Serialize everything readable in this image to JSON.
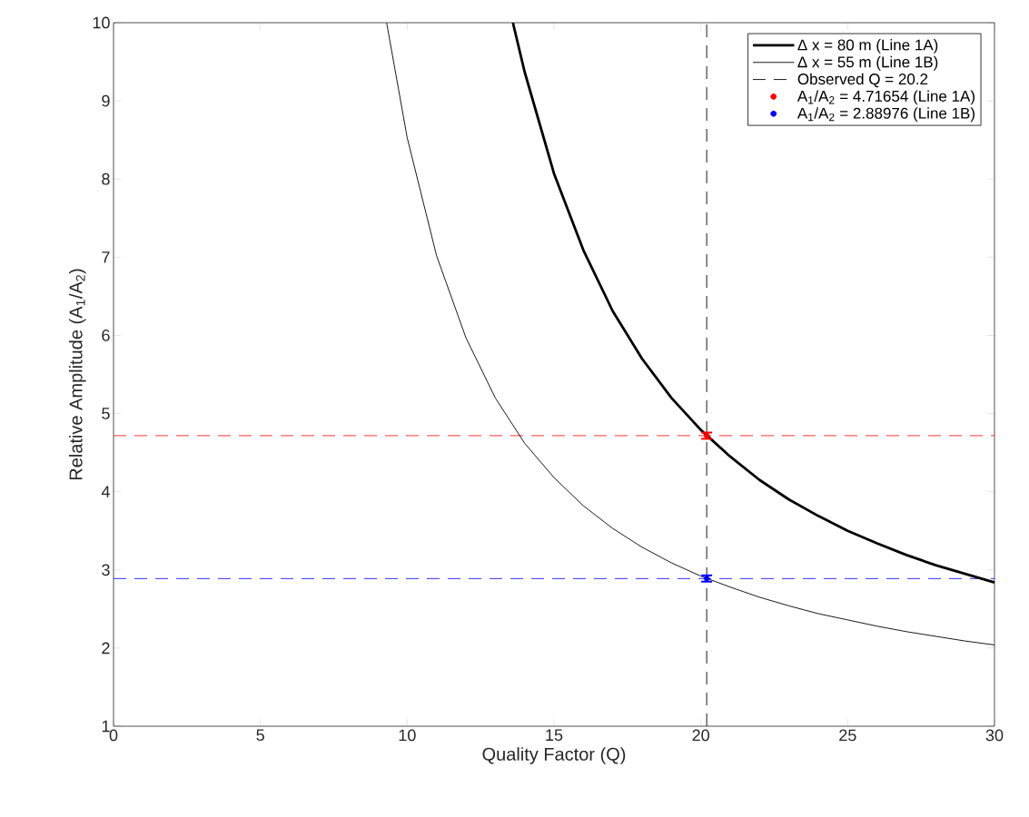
{
  "chart_data": {
    "type": "line",
    "xlabel": "Quality Factor (Q)",
    "ylabel": "Relative Amplitude (A$_{1}$/A$_{2}$)",
    "xlim": [
      0,
      30
    ],
    "ylim": [
      1,
      10
    ],
    "xticks": [
      0,
      5,
      10,
      15,
      20,
      25,
      30
    ],
    "yticks": [
      1,
      2,
      3,
      4,
      5,
      6,
      7,
      8,
      9,
      10
    ],
    "legend": "top right",
    "series": [
      {
        "name": "Δ x = 80 m (Line 1A)",
        "color": "#000000",
        "line_style": "solid",
        "marker": "none",
        "x": [
          13.6,
          14,
          15,
          16,
          17,
          18,
          19,
          20,
          21,
          22,
          23,
          24,
          25,
          26,
          27,
          28,
          29,
          30
        ],
        "values": [
          10.0,
          9.37,
          8.07,
          7.09,
          6.31,
          5.7,
          5.2,
          4.79,
          4.45,
          4.15,
          3.9,
          3.69,
          3.5,
          3.34,
          3.19,
          3.06,
          2.95,
          2.84
        ]
      },
      {
        "name": "Δ x = 55 m (Line 1B)",
        "color": "#000000",
        "line_style": "solid",
        "marker": "none",
        "x": [
          9.3,
          10,
          11,
          12,
          13,
          14,
          15,
          16,
          17,
          18,
          19,
          20,
          21,
          22,
          23,
          24,
          25,
          26,
          27,
          28,
          29,
          30
        ],
        "values": [
          10.0,
          8.53,
          7.02,
          5.97,
          5.2,
          4.62,
          4.18,
          3.82,
          3.53,
          3.29,
          3.09,
          2.92,
          2.78,
          2.65,
          2.54,
          2.44,
          2.36,
          2.28,
          2.21,
          2.15,
          2.09,
          2.04
        ]
      },
      {
        "name": "Observed Q = 20.2",
        "color": "#000000",
        "line_style": "dashed",
        "marker": "none",
        "x": [
          20.2,
          20.2
        ],
        "values": [
          1,
          10
        ]
      },
      {
        "type": "scatter",
        "name": "A$_{1}$/A$_{2}$ = 4.71654 (Line 1A)",
        "color": "#ff0000",
        "marker": "circle",
        "x": [
          20.2
        ],
        "values": [
          4.71654
        ],
        "errors": [
          0.04
        ]
      },
      {
        "type": "scatter",
        "name": "A$_{1}$/A$_{2}$ = 2.88976 (Line 1B)",
        "color": "#0000ff",
        "marker": "circle",
        "x": [
          20.2
        ],
        "values": [
          2.88976
        ],
        "errors": [
          0.04
        ]
      }
    ],
    "ref_lines": [
      {
        "axis": "y",
        "value": 4.71654,
        "color": "#ff0000",
        "line_style": "dashed"
      },
      {
        "axis": "y",
        "value": 2.88976,
        "color": "#0000ff",
        "line_style": "dashed"
      }
    ]
  }
}
